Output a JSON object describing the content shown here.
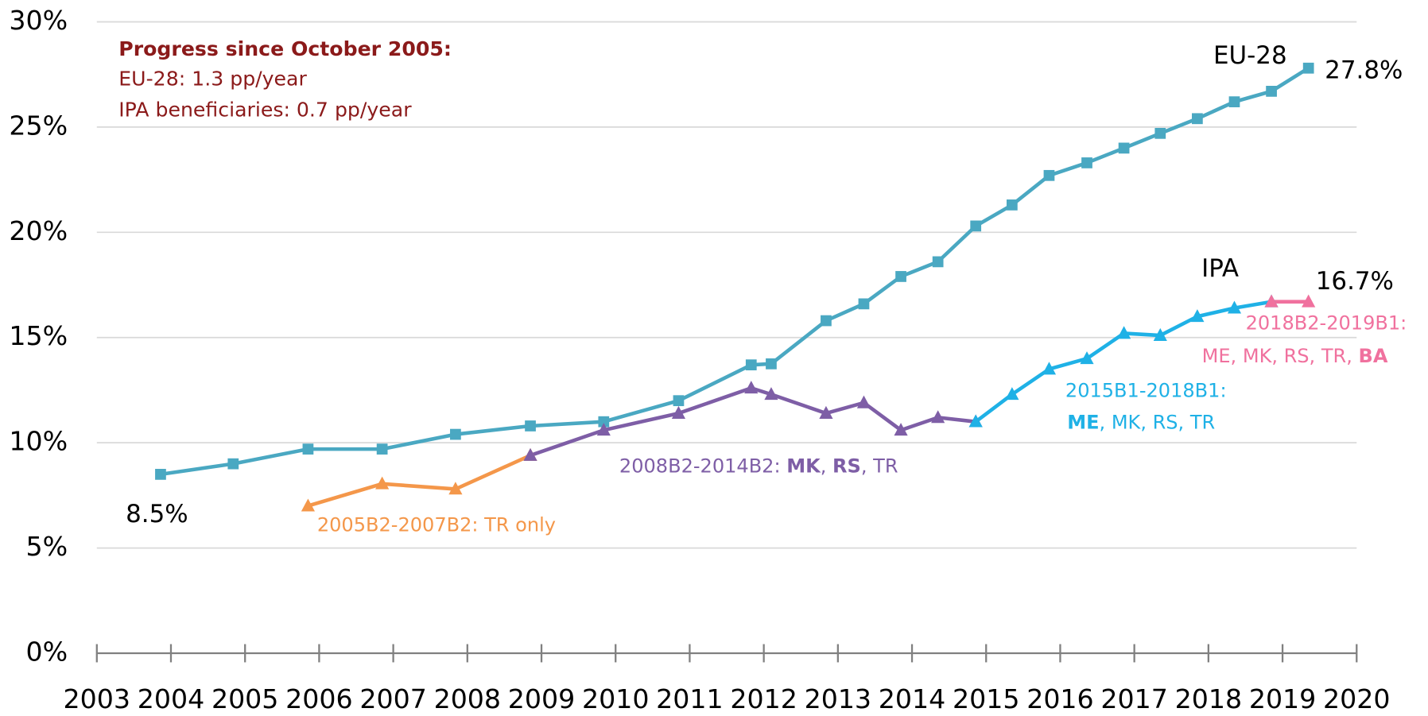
{
  "chart_data": {
    "type": "line",
    "xlim": [
      2003,
      2020
    ],
    "xticks": [
      2003,
      2004,
      2005,
      2006,
      2007,
      2008,
      2009,
      2010,
      2011,
      2012,
      2013,
      2014,
      2015,
      2016,
      2017,
      2018,
      2019,
      2020
    ],
    "ylim": [
      0,
      30
    ],
    "yticks": [
      {
        "value": 0,
        "label": "0%"
      },
      {
        "value": 5,
        "label": "5%"
      },
      {
        "value": 10,
        "label": "10%"
      },
      {
        "value": 15,
        "label": "15%"
      },
      {
        "value": 20,
        "label": "20%"
      },
      {
        "value": 25,
        "label": "25%"
      },
      {
        "value": 30,
        "label": "30%"
      }
    ],
    "grid": true,
    "series": [
      {
        "color": "#4aa8c2",
        "marker": "square",
        "x": [
          2003.86,
          2004.84,
          2005.85,
          2006.85,
          2007.84,
          2008.85,
          2009.84,
          2010.85,
          2011.83,
          2012.1,
          2012.84,
          2013.35,
          2013.85,
          2014.35,
          2014.86,
          2015.35,
          2015.85,
          2016.36,
          2016.86,
          2017.35,
          2017.85,
          2018.35,
          2018.85,
          2019.35
        ],
        "values": [
          8.5,
          9.0,
          9.7,
          9.7,
          10.4,
          10.8,
          11.0,
          12.0,
          13.7,
          13.75,
          15.8,
          16.6,
          17.9,
          18.6,
          20.3,
          21.3,
          22.7,
          23.3,
          24.0,
          24.7,
          25.4,
          26.2,
          26.7,
          27.8
        ]
      },
      {
        "color": "#f4974a",
        "marker": "triangle",
        "x": [
          2005.85,
          2006.85,
          2007.84,
          2008.85
        ],
        "values": [
          7.0,
          8.05,
          7.8,
          9.4
        ]
      },
      {
        "color": "#7e5ea6",
        "marker": "triangle",
        "x": [
          2008.85,
          2009.84,
          2010.85,
          2011.83,
          2012.1,
          2012.84,
          2013.35,
          2013.85,
          2014.35,
          2014.86
        ],
        "values": [
          9.4,
          10.6,
          11.4,
          12.6,
          12.3,
          11.4,
          11.9,
          10.6,
          11.2,
          11.0
        ]
      },
      {
        "color": "#1fb1e6",
        "marker": "triangle",
        "x": [
          2014.86,
          2015.35,
          2015.85,
          2016.36,
          2016.86,
          2017.35,
          2017.85,
          2018.35,
          2018.85
        ],
        "values": [
          11.0,
          12.3,
          13.5,
          14.0,
          15.2,
          15.1,
          16.0,
          16.4,
          16.7
        ]
      },
      {
        "color": "#f0719e",
        "marker": "triangle",
        "x": [
          2018.85,
          2019.35
        ],
        "values": [
          16.7,
          16.7
        ]
      }
    ],
    "annotations": [
      {
        "color": "#8b1a1a",
        "parts": [
          {
            "text": "Progress since October 2005:",
            "bold": true
          }
        ]
      },
      {
        "color": "#8b1a1a",
        "parts": [
          {
            "text": "EU-28: 1.3 pp/year",
            "bold": false
          }
        ]
      },
      {
        "color": "#8b1a1a",
        "parts": [
          {
            "text": "IPA beneficiaries: 0.7 pp/year",
            "bold": false
          }
        ]
      },
      {
        "color": "#000000",
        "parts": [
          {
            "text": "EU-28",
            "bold": false
          }
        ]
      },
      {
        "color": "#000000",
        "parts": [
          {
            "text": "27.8%",
            "bold": false
          }
        ]
      },
      {
        "color": "#000000",
        "parts": [
          {
            "text": "IPA",
            "bold": false
          }
        ]
      },
      {
        "color": "#000000",
        "parts": [
          {
            "text": "16.7%",
            "bold": false
          }
        ]
      },
      {
        "color": "#000000",
        "parts": [
          {
            "text": "8.5%",
            "bold": false
          }
        ]
      },
      {
        "color": "#f4974a",
        "parts": [
          {
            "text": "2005B2-2007B2: TR only",
            "bold": false
          }
        ]
      },
      {
        "color": "#7e5ea6",
        "parts": [
          {
            "text": "2008B2-2014B2: ",
            "bold": false
          },
          {
            "text": "MK",
            "bold": true
          },
          {
            "text": ", ",
            "bold": false
          },
          {
            "text": "RS",
            "bold": true
          },
          {
            "text": ", TR",
            "bold": false
          }
        ]
      },
      {
        "color": "#1fb1e6",
        "parts": [
          {
            "text": "2015B1-2018B1:",
            "bold": false
          }
        ]
      },
      {
        "color": "#1fb1e6",
        "parts": [
          {
            "text": "ME",
            "bold": true
          },
          {
            "text": ", MK, RS, TR",
            "bold": false
          }
        ]
      },
      {
        "color": "#f0719e",
        "parts": [
          {
            "text": "2018B2-2019B1:",
            "bold": false
          }
        ]
      },
      {
        "color": "#f0719e",
        "parts": [
          {
            "text": "ME, MK, RS, TR, ",
            "bold": false
          },
          {
            "text": "BA",
            "bold": true
          }
        ]
      }
    ]
  }
}
